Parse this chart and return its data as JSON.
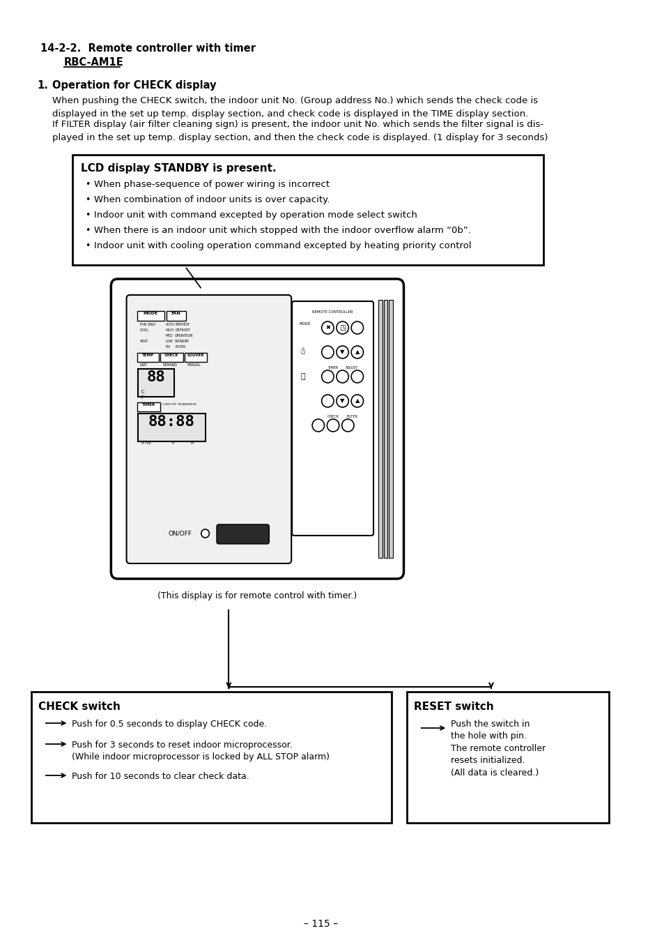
{
  "title_section": "14-2-2.  Remote controller with timer",
  "title_model": "RBC-AM1E",
  "section_num": "1.",
  "section_title": "Operation for CHECK display",
  "para1": "When pushing the CHECK switch, the indoor unit No. (Group address No.) which sends the check code is\ndisplayed in the set up temp. display section, and check code is displayed in the TIME display section.",
  "para2": "If FILTER display (air filter cleaning sign) is present, the indoor unit No. which sends the filter signal is dis-\nplayed in the set up temp. display section, and then the check code is displayed. (1 display for 3 seconds)",
  "standby_box_title": "LCD display STANDBY is present.",
  "standby_bullets": [
    "When phase-sequence of power wiring is incorrect",
    "When combination of indoor units is over capacity.",
    "Indoor unit with command excepted by operation mode select switch",
    "When there is an indoor unit which stopped with the indoor overflow alarm “0b”.",
    "Indoor unit with cooling operation command excepted by heating priority control"
  ],
  "check_box_title": "CHECK switch",
  "check_bullets": [
    "Push for 0.5 seconds to display CHECK code.",
    "Push for 3 seconds to reset indoor microprocessor.\n(While indoor microprocessor is locked by ALL STOP alarm)",
    "Push for 10 seconds to clear check data."
  ],
  "reset_box_title": "RESET switch",
  "reset_text": "Push the switch in\nthe hole with pin.\nThe remote controller\nresets initialized.\n(All data is cleared.)",
  "page_num": "– 115 –",
  "background_color": "#ffffff",
  "text_color": "#000000"
}
